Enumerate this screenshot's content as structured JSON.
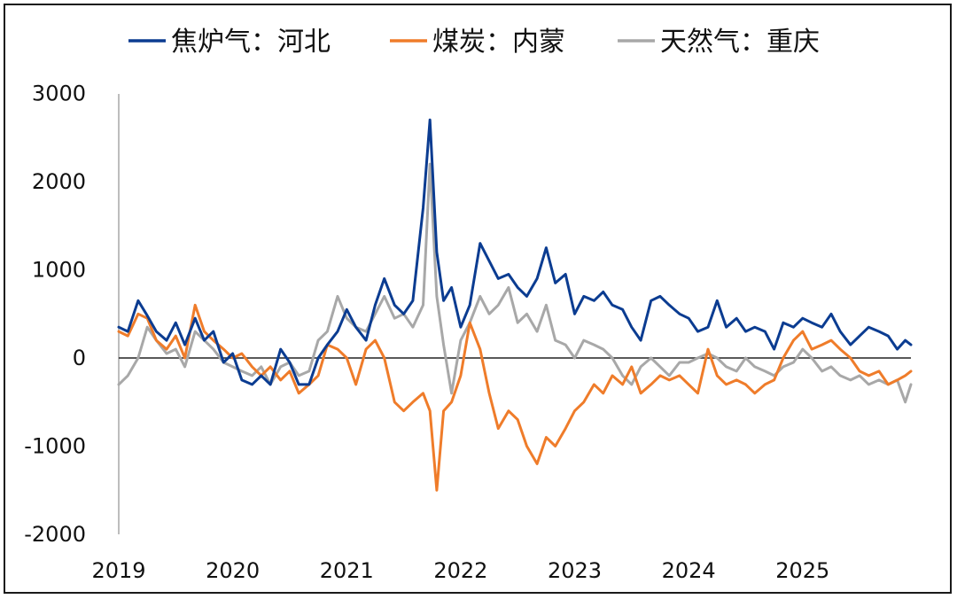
{
  "chart_data": {
    "type": "line",
    "title": "",
    "xlabel": "",
    "ylabel": "",
    "xlim": [
      2019.0,
      2025.95
    ],
    "ylim": [
      -2000,
      3000
    ],
    "y_ticks": [
      3000,
      2000,
      1000,
      0,
      -1000,
      -2000
    ],
    "x_ticks": [
      2019,
      2020,
      2021,
      2022,
      2023,
      2024,
      2025
    ],
    "x_tick_labels": [
      "2019",
      "2020",
      "2021",
      "2022",
      "2023",
      "2024",
      "2025"
    ],
    "grid": false,
    "legend": "top",
    "series": [
      {
        "name": "焦炉气：河北",
        "color": "#0b3c91",
        "x": [
          2019.0,
          2019.08,
          2019.17,
          2019.25,
          2019.33,
          2019.42,
          2019.5,
          2019.58,
          2019.67,
          2019.75,
          2019.83,
          2019.92,
          2020.0,
          2020.08,
          2020.17,
          2020.25,
          2020.33,
          2020.42,
          2020.5,
          2020.58,
          2020.67,
          2020.75,
          2020.83,
          2020.92,
          2021.0,
          2021.08,
          2021.17,
          2021.25,
          2021.33,
          2021.42,
          2021.5,
          2021.58,
          2021.67,
          2021.73,
          2021.79,
          2021.85,
          2021.92,
          2022.0,
          2022.08,
          2022.17,
          2022.25,
          2022.33,
          2022.42,
          2022.5,
          2022.58,
          2022.67,
          2022.75,
          2022.83,
          2022.92,
          2023.0,
          2023.08,
          2023.17,
          2023.25,
          2023.33,
          2023.42,
          2023.5,
          2023.58,
          2023.67,
          2023.75,
          2023.83,
          2023.92,
          2024.0,
          2024.08,
          2024.17,
          2024.25,
          2024.33,
          2024.42,
          2024.5,
          2024.58,
          2024.67,
          2024.75,
          2024.83,
          2024.92,
          2025.0,
          2025.08,
          2025.17,
          2025.25,
          2025.33,
          2025.42,
          2025.5,
          2025.58,
          2025.67,
          2025.75,
          2025.83,
          2025.9,
          2025.95
        ],
        "values": [
          350,
          300,
          650,
          480,
          300,
          200,
          400,
          150,
          450,
          200,
          300,
          -50,
          50,
          -250,
          -300,
          -200,
          -300,
          100,
          -50,
          -300,
          -300,
          0,
          150,
          300,
          550,
          350,
          200,
          600,
          900,
          600,
          500,
          650,
          1700,
          2700,
          1200,
          650,
          800,
          350,
          600,
          1300,
          1100,
          900,
          950,
          800,
          700,
          900,
          1250,
          850,
          950,
          500,
          700,
          650,
          750,
          600,
          550,
          350,
          200,
          650,
          700,
          600,
          500,
          450,
          300,
          350,
          650,
          350,
          450,
          300,
          350,
          300,
          100,
          400,
          350,
          450,
          400,
          350,
          500,
          300,
          150,
          250,
          350,
          300,
          250,
          100,
          200,
          150
        ]
      },
      {
        "name": "煤炭：内蒙",
        "color": "#ef7c2a",
        "x": [
          2019.0,
          2019.08,
          2019.17,
          2019.25,
          2019.33,
          2019.42,
          2019.5,
          2019.58,
          2019.67,
          2019.75,
          2019.83,
          2019.92,
          2020.0,
          2020.08,
          2020.17,
          2020.25,
          2020.33,
          2020.42,
          2020.5,
          2020.58,
          2020.67,
          2020.75,
          2020.83,
          2020.92,
          2021.0,
          2021.08,
          2021.17,
          2021.25,
          2021.33,
          2021.42,
          2021.5,
          2021.58,
          2021.67,
          2021.73,
          2021.79,
          2021.85,
          2021.92,
          2022.0,
          2022.08,
          2022.17,
          2022.25,
          2022.33,
          2022.42,
          2022.5,
          2022.58,
          2022.67,
          2022.75,
          2022.83,
          2022.92,
          2023.0,
          2023.08,
          2023.17,
          2023.25,
          2023.33,
          2023.42,
          2023.5,
          2023.58,
          2023.67,
          2023.75,
          2023.83,
          2023.92,
          2024.0,
          2024.08,
          2024.17,
          2024.25,
          2024.33,
          2024.42,
          2024.5,
          2024.58,
          2024.67,
          2024.75,
          2024.83,
          2024.92,
          2025.0,
          2025.08,
          2025.17,
          2025.25,
          2025.33,
          2025.42,
          2025.5,
          2025.58,
          2025.67,
          2025.75,
          2025.83,
          2025.9,
          2025.95
        ],
        "values": [
          300,
          250,
          500,
          450,
          200,
          100,
          250,
          0,
          600,
          300,
          200,
          100,
          0,
          50,
          -100,
          -200,
          -100,
          -250,
          -150,
          -400,
          -300,
          -200,
          150,
          100,
          0,
          -300,
          100,
          200,
          0,
          -500,
          -600,
          -500,
          -400,
          -600,
          -1500,
          -600,
          -500,
          -200,
          400,
          100,
          -400,
          -800,
          -600,
          -700,
          -1000,
          -1200,
          -900,
          -1000,
          -800,
          -600,
          -500,
          -300,
          -400,
          -200,
          -300,
          -100,
          -400,
          -300,
          -200,
          -250,
          -200,
          -300,
          -400,
          100,
          -200,
          -300,
          -250,
          -300,
          -400,
          -300,
          -250,
          0,
          200,
          300,
          100,
          150,
          200,
          100,
          0,
          -150,
          -200,
          -150,
          -300,
          -250,
          -200,
          -150
        ]
      },
      {
        "name": "天然气：重庆",
        "color": "#a8a8a8",
        "x": [
          2019.0,
          2019.08,
          2019.17,
          2019.25,
          2019.33,
          2019.42,
          2019.5,
          2019.58,
          2019.67,
          2019.75,
          2019.83,
          2019.92,
          2020.0,
          2020.08,
          2020.17,
          2020.25,
          2020.33,
          2020.42,
          2020.5,
          2020.58,
          2020.67,
          2020.75,
          2020.83,
          2020.92,
          2021.0,
          2021.08,
          2021.17,
          2021.25,
          2021.33,
          2021.42,
          2021.5,
          2021.58,
          2021.67,
          2021.73,
          2021.79,
          2021.85,
          2021.92,
          2022.0,
          2022.08,
          2022.17,
          2022.25,
          2022.33,
          2022.42,
          2022.5,
          2022.58,
          2022.67,
          2022.75,
          2022.83,
          2022.92,
          2023.0,
          2023.08,
          2023.17,
          2023.25,
          2023.33,
          2023.42,
          2023.5,
          2023.58,
          2023.67,
          2023.75,
          2023.83,
          2023.92,
          2024.0,
          2024.08,
          2024.17,
          2024.25,
          2024.33,
          2024.42,
          2024.5,
          2024.58,
          2024.67,
          2024.75,
          2024.83,
          2024.92,
          2025.0,
          2025.08,
          2025.17,
          2025.25,
          2025.33,
          2025.42,
          2025.5,
          2025.58,
          2025.67,
          2025.75,
          2025.83,
          2025.9,
          2025.95
        ],
        "values": [
          -300,
          -200,
          0,
          350,
          200,
          50,
          100,
          -100,
          300,
          200,
          100,
          -50,
          -100,
          -150,
          -200,
          -100,
          -300,
          -100,
          -50,
          -200,
          -150,
          200,
          300,
          700,
          450,
          350,
          300,
          500,
          700,
          450,
          500,
          350,
          600,
          2200,
          700,
          150,
          -400,
          200,
          400,
          700,
          500,
          600,
          800,
          400,
          500,
          300,
          600,
          200,
          150,
          0,
          200,
          150,
          100,
          0,
          -200,
          -300,
          -100,
          0,
          -100,
          -200,
          -50,
          -50,
          0,
          50,
          0,
          -100,
          -150,
          0,
          -100,
          -150,
          -200,
          -100,
          -50,
          100,
          0,
          -150,
          -100,
          -200,
          -250,
          -200,
          -300,
          -250,
          -300,
          -250,
          -500,
          -300
        ]
      }
    ]
  }
}
